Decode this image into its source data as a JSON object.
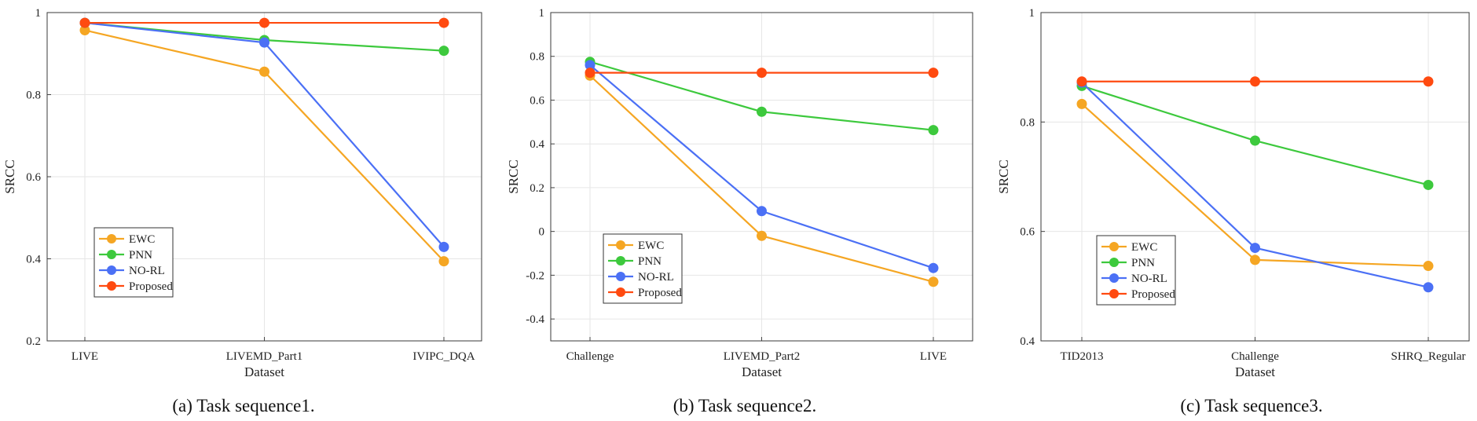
{
  "chart_data": [
    {
      "type": "line",
      "caption": "(a)  Task sequence1.",
      "xlabel": "Dataset",
      "ylabel": "SRCC",
      "categories": [
        "LIVE",
        "LIVEMD_Part1",
        "IVIPC_DQA"
      ],
      "ylim": [
        0.2,
        1
      ],
      "yticks": [
        "0.2",
        "0.4",
        "0.6",
        "0.8",
        "1"
      ],
      "grid": true,
      "legend_position": "lower-left",
      "series": [
        {
          "name": "EWC",
          "color": "#f5a623",
          "values": [
            0.957,
            0.856,
            0.394
          ]
        },
        {
          "name": "PNN",
          "color": "#3dc93d",
          "values": [
            0.975,
            0.933,
            0.907
          ]
        },
        {
          "name": "NO-RL",
          "color": "#4b70f5",
          "values": [
            0.975,
            0.927,
            0.429
          ]
        },
        {
          "name": "Proposed",
          "color": "#ff4a10",
          "values": [
            0.975,
            0.975,
            0.975
          ]
        }
      ]
    },
    {
      "type": "line",
      "caption": "(b)  Task sequence2.",
      "xlabel": "Dataset",
      "ylabel": "SRCC",
      "categories": [
        "Challenge",
        "LIVEMD_Part2",
        "LIVE"
      ],
      "ylim": [
        -0.5,
        1
      ],
      "yticks": [
        "-0.4",
        "-0.2",
        "0",
        "0.2",
        "0.4",
        "0.6",
        "0.8",
        "1"
      ],
      "grid": true,
      "legend_position": "lower-left",
      "series": [
        {
          "name": "EWC",
          "color": "#f5a623",
          "values": [
            0.712,
            -0.02,
            -0.23
          ]
        },
        {
          "name": "PNN",
          "color": "#3dc93d",
          "values": [
            0.775,
            0.547,
            0.463
          ]
        },
        {
          "name": "NO-RL",
          "color": "#4b70f5",
          "values": [
            0.76,
            0.093,
            -0.167
          ]
        },
        {
          "name": "Proposed",
          "color": "#ff4a10",
          "values": [
            0.725,
            0.725,
            0.725
          ]
        }
      ]
    },
    {
      "type": "line",
      "caption": "(c)  Task sequence3.",
      "xlabel": "Dataset",
      "ylabel": "SRCC",
      "categories": [
        "TID2013",
        "Challenge",
        "SHRQ_Regular"
      ],
      "ylim": [
        0.4,
        1
      ],
      "yticks": [
        "0.4",
        "0.6",
        "0.8",
        "1"
      ],
      "grid": true,
      "legend_position": "lower-left",
      "series": [
        {
          "name": "EWC",
          "color": "#f5a623",
          "values": [
            0.833,
            0.548,
            0.537
          ]
        },
        {
          "name": "PNN",
          "color": "#3dc93d",
          "values": [
            0.866,
            0.766,
            0.685
          ]
        },
        {
          "name": "NO-RL",
          "color": "#4b70f5",
          "values": [
            0.872,
            0.57,
            0.498
          ]
        },
        {
          "name": "Proposed",
          "color": "#ff4a10",
          "values": [
            0.874,
            0.874,
            0.874
          ]
        }
      ]
    }
  ]
}
